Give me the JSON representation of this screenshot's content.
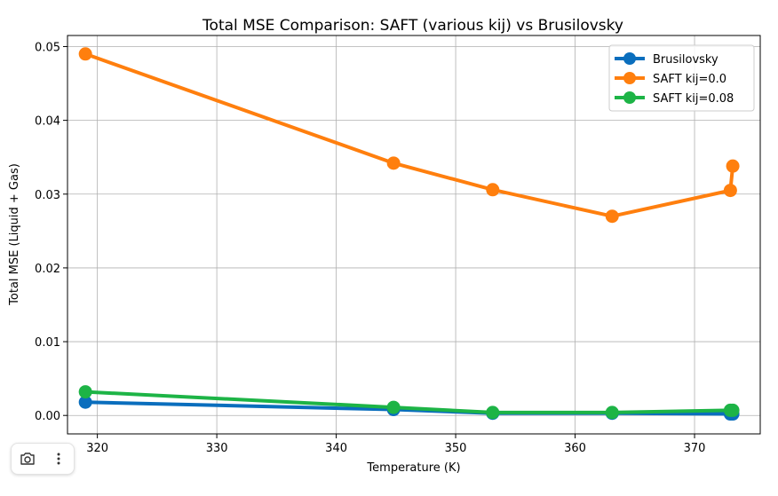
{
  "chart_data": {
    "type": "line",
    "title": "Total MSE Comparison: SAFT (various kij) vs Brusilovsky",
    "xlabel": "Temperature (K)",
    "ylabel": "Total MSE (Liquid + Gas)",
    "xlim": [
      317.5,
      375.5
    ],
    "ylim": [
      -0.0025,
      0.0515
    ],
    "xticks": [
      320,
      330,
      340,
      350,
      360,
      370
    ],
    "yticks": [
      0.0,
      0.01,
      0.02,
      0.03,
      0.04,
      0.05
    ],
    "ytick_labels": [
      "0.00",
      "0.01",
      "0.02",
      "0.03",
      "0.04",
      "0.05"
    ],
    "grid": true,
    "legend_position": "top-right",
    "series": [
      {
        "name": "Brusilovsky",
        "color": "#0a6ebd",
        "x": [
          319.0,
          344.8,
          353.1,
          363.1,
          373.0,
          373.2
        ],
        "y": [
          0.0018,
          0.0008,
          0.0003,
          0.0003,
          0.0002,
          0.0002
        ]
      },
      {
        "name": "SAFT kij=0.0",
        "color": "#ff7f0e",
        "x": [
          319.0,
          344.8,
          353.1,
          363.1,
          373.0,
          373.2
        ],
        "y": [
          0.049,
          0.0342,
          0.0306,
          0.027,
          0.0305,
          0.0338
        ]
      },
      {
        "name": "SAFT kij=0.08",
        "color": "#1db446",
        "x": [
          319.0,
          344.8,
          353.1,
          363.1,
          373.0,
          373.2
        ],
        "y": [
          0.0032,
          0.0011,
          0.0004,
          0.0004,
          0.0007,
          0.0007
        ]
      }
    ]
  },
  "toolbar": {
    "camera_icon": "camera-icon",
    "more_icon": "more-vertical-icon"
  }
}
